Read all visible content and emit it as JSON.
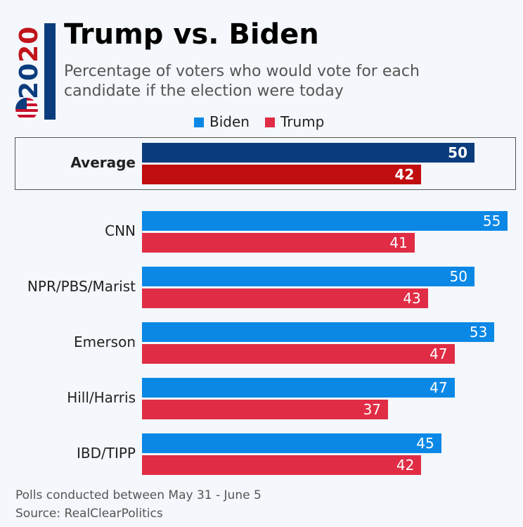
{
  "logo": {
    "year_a": "20",
    "year_b": "20"
  },
  "chart_data": {
    "type": "bar",
    "orientation": "horizontal",
    "title": "Trump vs. Biden",
    "subtitle": "Percentage of voters who would vote for each candidate if the election were today",
    "categories": [
      "Average",
      "CNN",
      "NPR/PBS/Marist",
      "Emerson",
      "Hill/Harris",
      "IBD/TIPP"
    ],
    "series": [
      {
        "name": "Biden",
        "color": "#0b88e6",
        "average_color": "#0b3c7d",
        "values": [
          50,
          55,
          50,
          53,
          47,
          45
        ]
      },
      {
        "name": "Trump",
        "color": "#e02d45",
        "average_color": "#c00d0f",
        "values": [
          42,
          41,
          43,
          47,
          37,
          42
        ]
      }
    ],
    "xlim": [
      0,
      55
    ],
    "grid": false,
    "legend": "top",
    "data_labels": true
  },
  "footer": {
    "note": "Polls conducted between May 31 - June 5",
    "source": "Source: RealClearPolitics"
  }
}
